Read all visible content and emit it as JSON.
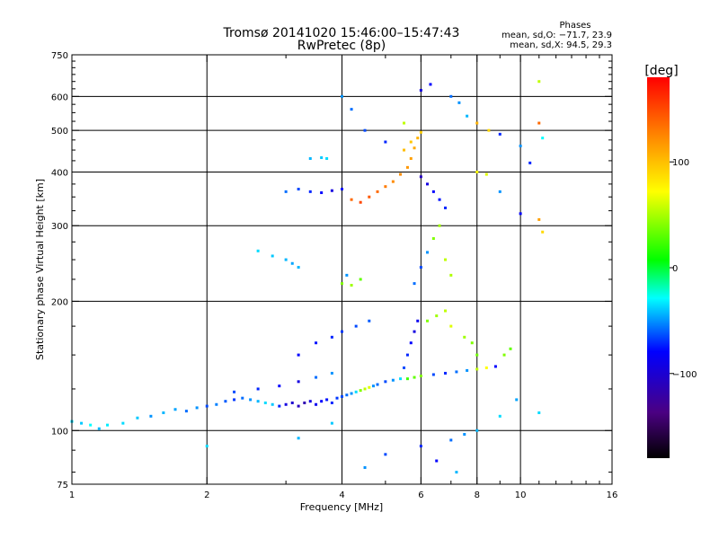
{
  "chart_data": {
    "type": "scatter",
    "title": "Tromsø 20141020 15:46:00–15:47:43",
    "subtitle": "RwPretec (8p)",
    "xlabel": "Frequency [MHz]",
    "ylabel": "Stationary phase Virtual Height [km]",
    "x_scale": "log",
    "y_scale": "log",
    "xlim": [
      1,
      16
    ],
    "ylim": [
      75,
      750
    ],
    "x_ticks": [
      1,
      2,
      4,
      6,
      8,
      10,
      16
    ],
    "y_ticks": [
      75,
      100,
      200,
      300,
      400,
      500,
      600,
      750
    ],
    "grid": true,
    "stats_header": "Phases",
    "stats_line_o": "mean, sd,O: −71.7, 23.9",
    "stats_line_x": "mean, sd,X:  94.5, 29.3",
    "colorbar": {
      "unit": "[deg]",
      "ticks": [
        100,
        0,
        -100
      ],
      "tick_labels": [
        "100",
        "0",
        "−100"
      ],
      "range": [
        -180,
        180
      ]
    },
    "series": [
      {
        "values": [
          [
            1.0,
            105,
            -40
          ],
          [
            1.05,
            104,
            -45
          ],
          [
            1.1,
            103,
            -30
          ],
          [
            1.15,
            101,
            -50
          ],
          [
            1.2,
            103,
            -35
          ],
          [
            1.3,
            104,
            -40
          ],
          [
            1.4,
            107,
            -45
          ],
          [
            1.5,
            108,
            -60
          ],
          [
            1.6,
            110,
            -50
          ],
          [
            1.7,
            112,
            -55
          ],
          [
            1.8,
            111,
            -70
          ],
          [
            1.9,
            113,
            -60
          ],
          [
            2.0,
            114,
            -80
          ],
          [
            2.1,
            115,
            -65
          ],
          [
            2.2,
            117,
            -75
          ],
          [
            2.3,
            118,
            -85
          ],
          [
            2.4,
            119,
            -70
          ],
          [
            2.5,
            118,
            -60
          ],
          [
            2.6,
            117,
            -50
          ],
          [
            2.7,
            116,
            -40
          ],
          [
            2.8,
            115,
            -45
          ],
          [
            2.9,
            114,
            -90
          ],
          [
            3.0,
            115,
            -110
          ],
          [
            3.1,
            116,
            -115
          ],
          [
            3.2,
            114,
            -120
          ],
          [
            3.3,
            116,
            -125
          ],
          [
            3.4,
            117,
            -110
          ],
          [
            3.5,
            115,
            -105
          ],
          [
            3.6,
            117,
            -100
          ],
          [
            3.7,
            118,
            -95
          ],
          [
            3.8,
            116,
            -90
          ],
          [
            3.9,
            119,
            -85
          ],
          [
            4.0,
            120,
            -80
          ],
          [
            4.1,
            121,
            -70
          ],
          [
            4.2,
            122,
            -60
          ],
          [
            4.3,
            123,
            -40
          ],
          [
            4.4,
            124,
            40
          ],
          [
            4.5,
            125,
            60
          ],
          [
            4.6,
            126,
            70
          ],
          [
            4.7,
            127,
            -60
          ],
          [
            4.8,
            128,
            -70
          ],
          [
            5.0,
            130,
            -80
          ],
          [
            5.2,
            131,
            -60
          ],
          [
            5.4,
            132,
            -40
          ],
          [
            5.6,
            132,
            20
          ],
          [
            5.8,
            133,
            30
          ],
          [
            6.0,
            134,
            40
          ],
          [
            6.4,
            135,
            -80
          ],
          [
            6.8,
            136,
            -90
          ],
          [
            7.2,
            137,
            -70
          ],
          [
            7.6,
            138,
            -60
          ],
          [
            8.0,
            139,
            60
          ],
          [
            8.4,
            140,
            80
          ],
          [
            8.8,
            141,
            -100
          ],
          [
            9.2,
            150,
            40
          ],
          [
            9.5,
            155,
            30
          ],
          [
            2.3,
            123,
            -80
          ],
          [
            2.6,
            125,
            -90
          ],
          [
            2.9,
            127,
            -100
          ],
          [
            3.2,
            130,
            -110
          ],
          [
            3.5,
            133,
            -70
          ],
          [
            3.8,
            136,
            -60
          ],
          [
            3.0,
            360,
            -70
          ],
          [
            3.2,
            365,
            -80
          ],
          [
            3.4,
            360,
            -90
          ],
          [
            3.6,
            358,
            -100
          ],
          [
            3.8,
            362,
            -110
          ],
          [
            4.0,
            365,
            -95
          ],
          [
            4.2,
            345,
            150
          ],
          [
            4.4,
            340,
            160
          ],
          [
            4.6,
            350,
            155
          ],
          [
            4.8,
            360,
            150
          ],
          [
            5.0,
            370,
            145
          ],
          [
            5.2,
            380,
            140
          ],
          [
            5.4,
            395,
            140
          ],
          [
            5.6,
            410,
            135
          ],
          [
            5.7,
            430,
            130
          ],
          [
            5.8,
            455,
            125
          ],
          [
            5.9,
            480,
            120
          ],
          [
            5.7,
            470,
            110
          ],
          [
            5.5,
            450,
            115
          ],
          [
            6.0,
            495,
            105
          ],
          [
            3.4,
            430,
            -50
          ],
          [
            3.6,
            432,
            -45
          ],
          [
            3.7,
            430,
            -40
          ],
          [
            2.6,
            262,
            -40
          ],
          [
            2.8,
            255,
            -45
          ],
          [
            3.0,
            250,
            -50
          ],
          [
            3.1,
            245,
            -55
          ],
          [
            3.2,
            240,
            -50
          ],
          [
            4.0,
            220,
            40
          ],
          [
            4.2,
            218,
            50
          ],
          [
            4.4,
            225,
            30
          ],
          [
            4.1,
            230,
            -60
          ],
          [
            5.8,
            220,
            -70
          ],
          [
            6.0,
            240,
            -80
          ],
          [
            6.2,
            260,
            -60
          ],
          [
            6.4,
            280,
            40
          ],
          [
            6.6,
            300,
            50
          ],
          [
            6.8,
            250,
            60
          ],
          [
            7.0,
            230,
            55
          ],
          [
            6.2,
            180,
            40
          ],
          [
            6.5,
            185,
            50
          ],
          [
            6.8,
            190,
            60
          ],
          [
            7.0,
            175,
            70
          ],
          [
            7.5,
            165,
            50
          ],
          [
            7.8,
            160,
            40
          ],
          [
            8.0,
            150,
            35
          ],
          [
            5.5,
            140,
            -80
          ],
          [
            5.6,
            150,
            -90
          ],
          [
            5.7,
            160,
            -100
          ],
          [
            5.8,
            170,
            -110
          ],
          [
            5.9,
            180,
            -105
          ],
          [
            3.2,
            150,
            -100
          ],
          [
            3.5,
            160,
            -95
          ],
          [
            3.8,
            165,
            -90
          ],
          [
            4.0,
            170,
            -85
          ],
          [
            4.3,
            175,
            -80
          ],
          [
            4.6,
            180,
            -75
          ],
          [
            4.0,
            600,
            -60
          ],
          [
            4.2,
            560,
            -70
          ],
          [
            4.5,
            500,
            -80
          ],
          [
            5.0,
            470,
            -90
          ],
          [
            5.5,
            520,
            60
          ],
          [
            6.0,
            620,
            -110
          ],
          [
            6.3,
            640,
            -100
          ],
          [
            7.0,
            600,
            -70
          ],
          [
            7.3,
            580,
            -60
          ],
          [
            7.6,
            540,
            -50
          ],
          [
            8.0,
            520,
            120
          ],
          [
            8.5,
            500,
            100
          ],
          [
            9.0,
            490,
            -90
          ],
          [
            6.0,
            390,
            -120
          ],
          [
            6.2,
            375,
            -110
          ],
          [
            6.4,
            360,
            -100
          ],
          [
            6.6,
            345,
            -95
          ],
          [
            6.8,
            330,
            -90
          ],
          [
            8.0,
            400,
            80
          ],
          [
            8.4,
            395,
            70
          ],
          [
            9.0,
            360,
            -60
          ],
          [
            10.0,
            320,
            -100
          ],
          [
            11.0,
            310,
            130
          ],
          [
            11.2,
            290,
            100
          ],
          [
            10.0,
            460,
            -60
          ],
          [
            10.5,
            420,
            -90
          ],
          [
            11.0,
            520,
            150
          ],
          [
            11.2,
            480,
            -30
          ],
          [
            11.0,
            650,
            60
          ],
          [
            7.0,
            95,
            -70
          ],
          [
            7.5,
            98,
            -60
          ],
          [
            8.0,
            100,
            -50
          ],
          [
            9.0,
            108,
            -40
          ],
          [
            6.0,
            92,
            -90
          ],
          [
            6.5,
            85,
            -100
          ],
          [
            5.0,
            88,
            -80
          ],
          [
            4.5,
            82,
            -60
          ],
          [
            7.2,
            80,
            -50
          ],
          [
            2.0,
            92,
            -40
          ],
          [
            3.2,
            96,
            -50
          ],
          [
            3.8,
            104,
            -45
          ],
          [
            11.0,
            110,
            -40
          ],
          [
            9.8,
            118,
            -55
          ]
        ]
      }
    ]
  }
}
